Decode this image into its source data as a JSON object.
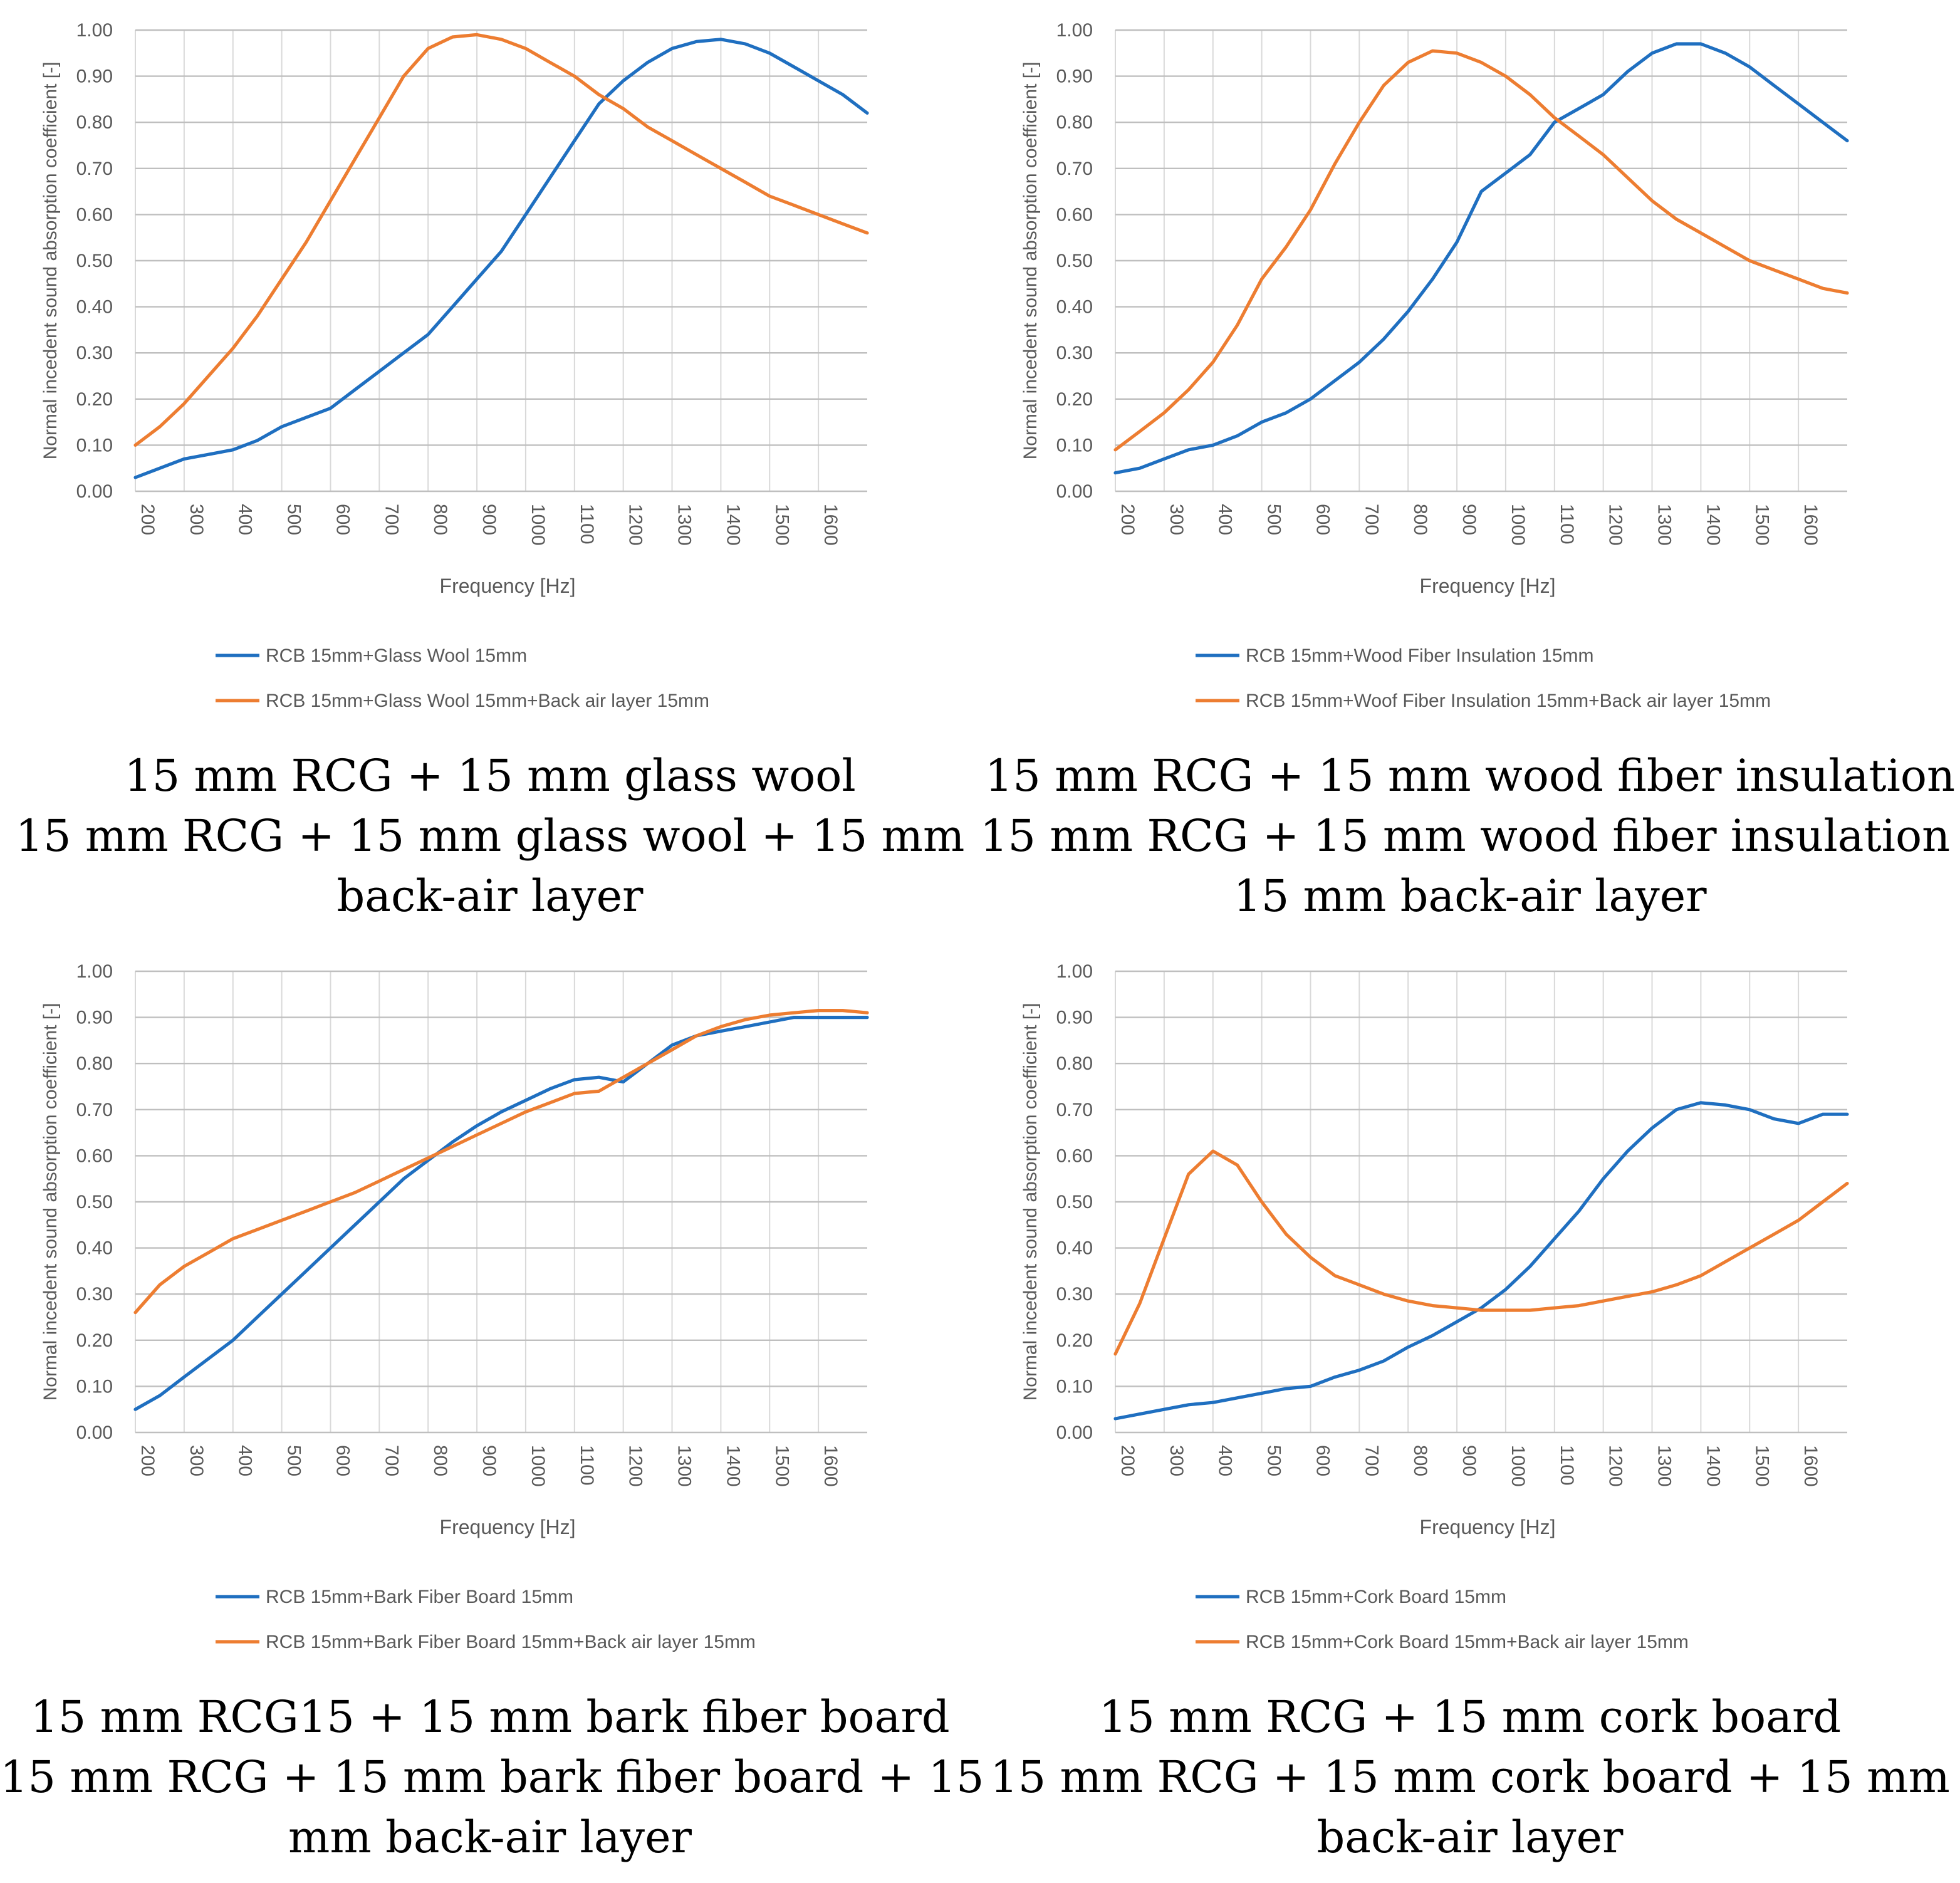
{
  "colors": {
    "blue": "#1f6fc0",
    "orange": "#ed7d31",
    "grid": "#bfbfbf",
    "vgrid": "#d9d9d9",
    "text": "#595959"
  },
  "chart_data": [
    {
      "type": "line",
      "ylabel": "Normal incedent sound absorption coefficient [-]",
      "xlabel": "Frequency [Hz]",
      "xlim": [
        200,
        1700
      ],
      "ylim": [
        0,
        1
      ],
      "x_ticks": [
        "200",
        "300",
        "400",
        "500",
        "600",
        "700",
        "800",
        "900",
        "1000",
        "1100",
        "1200",
        "1300",
        "1400",
        "1500",
        "1600"
      ],
      "y_ticks": [
        "0.00",
        "0.10",
        "0.20",
        "0.30",
        "0.40",
        "0.50",
        "0.60",
        "0.70",
        "0.80",
        "0.90",
        "1.00"
      ],
      "series": [
        {
          "name": "RCB 15mm+Glass Wool 15mm",
          "color": "#1f6fc0",
          "x": [
            200,
            250,
            300,
            350,
            400,
            450,
            500,
            550,
            600,
            650,
            700,
            750,
            800,
            850,
            900,
            950,
            1000,
            1050,
            1100,
            1150,
            1200,
            1250,
            1300,
            1350,
            1400,
            1450,
            1500,
            1550,
            1600,
            1650,
            1700
          ],
          "y": [
            0.03,
            0.05,
            0.07,
            0.08,
            0.09,
            0.11,
            0.14,
            0.16,
            0.18,
            0.22,
            0.26,
            0.3,
            0.34,
            0.4,
            0.46,
            0.52,
            0.6,
            0.68,
            0.76,
            0.84,
            0.89,
            0.93,
            0.96,
            0.975,
            0.98,
            0.97,
            0.95,
            0.92,
            0.89,
            0.86,
            0.82
          ]
        },
        {
          "name": "RCB 15mm+Glass Wool 15mm+Back air layer 15mm",
          "color": "#ed7d31",
          "x": [
            200,
            250,
            300,
            350,
            400,
            450,
            500,
            550,
            600,
            650,
            700,
            750,
            800,
            850,
            900,
            950,
            1000,
            1050,
            1100,
            1150,
            1200,
            1250,
            1300,
            1350,
            1400,
            1450,
            1500,
            1550,
            1600,
            1650,
            1700
          ],
          "y": [
            0.1,
            0.14,
            0.19,
            0.25,
            0.31,
            0.38,
            0.46,
            0.54,
            0.63,
            0.72,
            0.81,
            0.9,
            0.96,
            0.985,
            0.99,
            0.98,
            0.96,
            0.93,
            0.9,
            0.86,
            0.83,
            0.79,
            0.76,
            0.73,
            0.7,
            0.67,
            0.64,
            0.62,
            0.6,
            0.58,
            0.56
          ]
        }
      ],
      "caption": [
        "15 mm RCG + 15 mm glass wool",
        "15 mm RCG + 15 mm glass wool + 15 mm",
        "back-air layer"
      ]
    },
    {
      "type": "line",
      "ylabel": "Normal incedent sound absorption coefficient [-]",
      "xlabel": "Frequency [Hz]",
      "xlim": [
        200,
        1700
      ],
      "ylim": [
        0,
        1
      ],
      "x_ticks": [
        "200",
        "300",
        "400",
        "500",
        "600",
        "700",
        "800",
        "900",
        "1000",
        "1100",
        "1200",
        "1300",
        "1400",
        "1500",
        "1600"
      ],
      "y_ticks": [
        "0.00",
        "0.10",
        "0.20",
        "0.30",
        "0.40",
        "0.50",
        "0.60",
        "0.70",
        "0.80",
        "0.90",
        "1.00"
      ],
      "series": [
        {
          "name": "RCB 15mm+Wood Fiber Insulation 15mm",
          "color": "#1f6fc0",
          "x": [
            200,
            250,
            300,
            350,
            400,
            450,
            500,
            550,
            600,
            650,
            700,
            750,
            800,
            850,
            900,
            950,
            1000,
            1050,
            1100,
            1150,
            1200,
            1250,
            1300,
            1350,
            1400,
            1450,
            1500,
            1550,
            1600,
            1650,
            1700
          ],
          "y": [
            0.04,
            0.05,
            0.07,
            0.09,
            0.1,
            0.12,
            0.15,
            0.17,
            0.2,
            0.24,
            0.28,
            0.33,
            0.39,
            0.46,
            0.54,
            0.65,
            0.69,
            0.73,
            0.8,
            0.83,
            0.86,
            0.91,
            0.95,
            0.97,
            0.97,
            0.95,
            0.92,
            0.88,
            0.84,
            0.8,
            0.76
          ]
        },
        {
          "name": "RCB 15mm+Woof Fiber Insulation 15mm+Back air layer 15mm",
          "color": "#ed7d31",
          "x": [
            200,
            250,
            300,
            350,
            400,
            450,
            500,
            550,
            600,
            650,
            700,
            750,
            800,
            850,
            900,
            950,
            1000,
            1050,
            1100,
            1150,
            1200,
            1250,
            1300,
            1350,
            1400,
            1450,
            1500,
            1550,
            1600,
            1650,
            1700
          ],
          "y": [
            0.09,
            0.13,
            0.17,
            0.22,
            0.28,
            0.36,
            0.46,
            0.53,
            0.61,
            0.71,
            0.8,
            0.88,
            0.93,
            0.955,
            0.95,
            0.93,
            0.9,
            0.86,
            0.81,
            0.77,
            0.73,
            0.68,
            0.63,
            0.59,
            0.56,
            0.53,
            0.5,
            0.48,
            0.46,
            0.44,
            0.43
          ]
        }
      ],
      "caption": [
        "15 mm RCG + 15 mm wood fiber insulation",
        "15 mm RCG + 15 mm wood fiber insulation +",
        "15 mm back-air layer"
      ]
    },
    {
      "type": "line",
      "ylabel": "Normal incedent sound absorption coefficient [-]",
      "xlabel": "Frequency [Hz]",
      "xlim": [
        200,
        1700
      ],
      "ylim": [
        0,
        1
      ],
      "x_ticks": [
        "200",
        "300",
        "400",
        "500",
        "600",
        "700",
        "800",
        "900",
        "1000",
        "1100",
        "1200",
        "1300",
        "1400",
        "1500",
        "1600"
      ],
      "y_ticks": [
        "0.00",
        "0.10",
        "0.20",
        "0.30",
        "0.40",
        "0.50",
        "0.60",
        "0.70",
        "0.80",
        "0.90",
        "1.00"
      ],
      "series": [
        {
          "name": "RCB 15mm+Bark Fiber Board 15mm",
          "color": "#1f6fc0",
          "x": [
            200,
            250,
            300,
            350,
            400,
            450,
            500,
            550,
            600,
            650,
            700,
            750,
            800,
            850,
            900,
            950,
            1000,
            1050,
            1100,
            1150,
            1200,
            1250,
            1300,
            1350,
            1400,
            1450,
            1500,
            1550,
            1600,
            1650,
            1700
          ],
          "y": [
            0.05,
            0.08,
            0.12,
            0.16,
            0.2,
            0.25,
            0.3,
            0.35,
            0.4,
            0.45,
            0.5,
            0.55,
            0.59,
            0.63,
            0.665,
            0.695,
            0.72,
            0.745,
            0.765,
            0.77,
            0.76,
            0.8,
            0.84,
            0.86,
            0.87,
            0.88,
            0.89,
            0.9,
            0.9,
            0.9,
            0.9
          ]
        },
        {
          "name": "RCB 15mm+Bark Fiber Board 15mm+Back air layer 15mm",
          "color": "#ed7d31",
          "x": [
            200,
            250,
            300,
            350,
            400,
            450,
            500,
            550,
            600,
            650,
            700,
            750,
            800,
            850,
            900,
            950,
            1000,
            1050,
            1100,
            1150,
            1200,
            1250,
            1300,
            1350,
            1400,
            1450,
            1500,
            1550,
            1600,
            1650,
            1700
          ],
          "y": [
            0.26,
            0.32,
            0.36,
            0.39,
            0.42,
            0.44,
            0.46,
            0.48,
            0.5,
            0.52,
            0.545,
            0.57,
            0.595,
            0.62,
            0.645,
            0.67,
            0.695,
            0.715,
            0.735,
            0.74,
            0.77,
            0.8,
            0.83,
            0.86,
            0.88,
            0.895,
            0.905,
            0.91,
            0.915,
            0.915,
            0.91
          ]
        }
      ],
      "caption": [
        "15 mm RCG15 + 15 mm bark fiber board",
        "15 mm RCG + 15 mm bark fiber board + 15",
        "mm back-air layer"
      ]
    },
    {
      "type": "line",
      "ylabel": "Normal incedent sound absorption coefficient [-]",
      "xlabel": "Frequency [Hz]",
      "xlim": [
        200,
        1700
      ],
      "ylim": [
        0,
        1
      ],
      "x_ticks": [
        "200",
        "300",
        "400",
        "500",
        "600",
        "700",
        "800",
        "900",
        "1000",
        "1100",
        "1200",
        "1300",
        "1400",
        "1500",
        "1600"
      ],
      "y_ticks": [
        "0.00",
        "0.10",
        "0.20",
        "0.30",
        "0.40",
        "0.50",
        "0.60",
        "0.70",
        "0.80",
        "0.90",
        "1.00"
      ],
      "series": [
        {
          "name": "RCB 15mm+Cork Board 15mm",
          "color": "#1f6fc0",
          "x": [
            200,
            250,
            300,
            350,
            400,
            450,
            500,
            550,
            600,
            650,
            700,
            750,
            800,
            850,
            900,
            950,
            1000,
            1050,
            1100,
            1150,
            1200,
            1250,
            1300,
            1350,
            1400,
            1450,
            1500,
            1550,
            1600,
            1650,
            1700
          ],
          "y": [
            0.03,
            0.04,
            0.05,
            0.06,
            0.065,
            0.075,
            0.085,
            0.095,
            0.1,
            0.12,
            0.135,
            0.155,
            0.185,
            0.21,
            0.24,
            0.27,
            0.31,
            0.36,
            0.42,
            0.48,
            0.55,
            0.61,
            0.66,
            0.7,
            0.715,
            0.71,
            0.7,
            0.68,
            0.67,
            0.69,
            0.69
          ]
        },
        {
          "name": "RCB 15mm+Cork Board 15mm+Back air layer 15mm",
          "color": "#ed7d31",
          "x": [
            200,
            250,
            300,
            350,
            400,
            450,
            500,
            550,
            600,
            650,
            700,
            750,
            800,
            850,
            900,
            950,
            1000,
            1050,
            1100,
            1150,
            1200,
            1250,
            1300,
            1350,
            1400,
            1450,
            1500,
            1550,
            1600,
            1650,
            1700
          ],
          "y": [
            0.17,
            0.28,
            0.42,
            0.56,
            0.61,
            0.58,
            0.5,
            0.43,
            0.38,
            0.34,
            0.32,
            0.3,
            0.285,
            0.275,
            0.27,
            0.265,
            0.265,
            0.265,
            0.27,
            0.275,
            0.285,
            0.295,
            0.305,
            0.32,
            0.34,
            0.37,
            0.4,
            0.43,
            0.46,
            0.5,
            0.54
          ]
        }
      ],
      "caption": [
        "15 mm RCG + 15 mm cork board",
        "15 mm RCG + 15 mm cork board + 15 mm",
        "back-air layer"
      ]
    }
  ]
}
